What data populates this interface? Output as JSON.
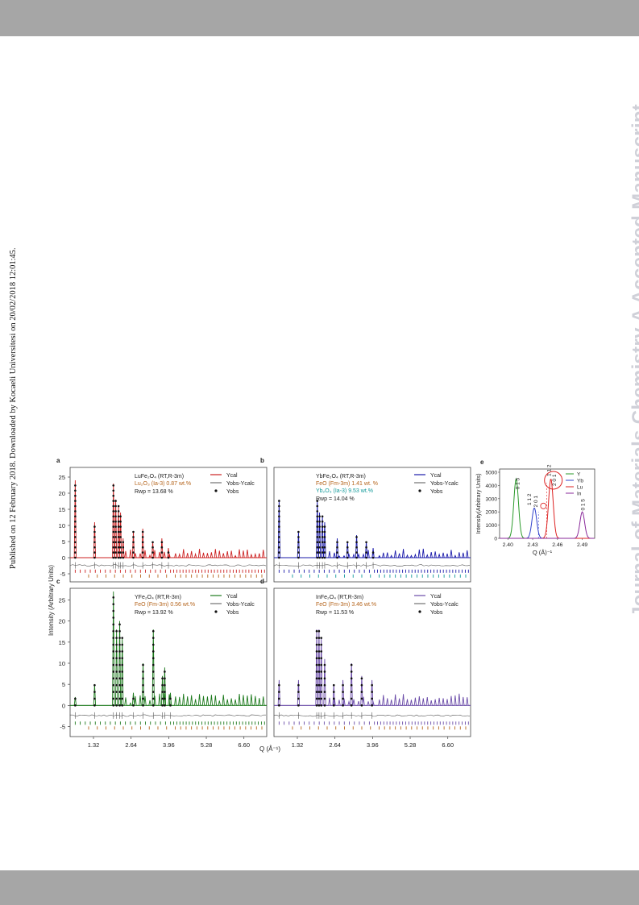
{
  "header_band": "",
  "footer_band": "",
  "published_note": "Published on 12 February 2018. Downloaded by Kocaeli Universitesi on 20/02/2018 12:01:45.",
  "journal_watermark": "Journal of Materials Chemistry A Accepted Manuscript",
  "figure": {
    "y_label": "Intensity (Arbitrary Units)",
    "x_label": "Q (Å⁻¹)",
    "x_ticks": [
      "1.32",
      "2.64",
      "3.96",
      "5.28",
      "6.60"
    ],
    "x_ticks_right": [
      "1.32",
      "2.64",
      "3.96",
      "5.28",
      "6.60"
    ],
    "y_ticks": [
      "25",
      "20",
      "15",
      "10",
      "5",
      "0",
      "-5"
    ],
    "panels": [
      {
        "letter": "a",
        "color": "#cc2222",
        "tick_color2": "#b5651d",
        "compound": "LuFe₂O₄ (RT,R-3m)",
        "phase1": "Lu₂O₃ (Ia-3) 0.87 wt.%",
        "phase2": "",
        "rwp": "Rwp = 13.68 %",
        "legend": [
          "Ycal",
          "Yobs-Ycalc",
          "Yobs"
        ]
      },
      {
        "letter": "b",
        "color": "#1a1aaa",
        "tick_color2": "#119999",
        "compound": "YbFe₂O₄ (RT,R-3m)",
        "phase1": "FeO (Fm-3m) 1.41 wt. %",
        "phase2": "Yb₂O₃ (Ia-3) 9.53 wt.%",
        "rwp": "Rwp = 14.04 %",
        "legend": [
          "Ycal",
          "Yobs-Ycalc",
          "Yobs"
        ]
      },
      {
        "letter": "c",
        "color": "#1d7a1d",
        "tick_color2": "#b5651d",
        "compound": "YFe₂O₄ (RT,R-3m)",
        "phase1": "FeO (Fm-3m) 0.56 wt.%",
        "phase2": "",
        "rwp": "Rwp = 13.92 %",
        "legend": [
          "Ycal",
          "Yobs-Ycalc",
          "Yobs"
        ]
      },
      {
        "letter": "d",
        "color": "#6a4ba8",
        "tick_color2": "#b5651d",
        "compound": "InFe₂O₄ (RT,R-3m)",
        "phase1": "FeO (Fm-3m) 3.46 wt.%",
        "phase2": "",
        "rwp": "Rwp = 11.53 %",
        "legend": [
          "Ycal",
          "Yobs-Ycalc",
          "Yobs"
        ]
      }
    ],
    "panel_e": {
      "letter": "e",
      "y_label": "Intensity(Arbitrary Units)",
      "x_label": "Q (Å)⁻¹",
      "y_ticks": [
        "5000",
        "4000",
        "3000",
        "2000",
        "1000",
        "0"
      ],
      "x_ticks": [
        "2.40",
        "2.43",
        "2.46",
        "2.49"
      ],
      "legend": [
        {
          "name": "Y",
          "color": "#2a9a2a"
        },
        {
          "name": "Yb",
          "color": "#3344cc"
        },
        {
          "name": "Lu",
          "color": "#dd2222"
        },
        {
          "name": "In",
          "color": "#8a2a9a"
        }
      ],
      "peak_labels": [
        "0 1 5",
        "1 1 2",
        "2 0 1",
        "1 1 2",
        "2 0 1",
        "0 1 5"
      ]
    }
  },
  "chart_data": [
    {
      "type": "line",
      "panel": "a",
      "series": [
        {
          "name": "Ycal",
          "peaks_q": [
            0.68,
            1.36,
            2.02,
            2.1,
            2.2,
            2.27,
            2.36,
            2.72,
            3.05,
            3.4,
            3.72,
            3.95
          ],
          "peaks_i": [
            24,
            11,
            23,
            18,
            16,
            14,
            6,
            8,
            9,
            5,
            6,
            3
          ]
        }
      ],
      "ylim": [
        -7,
        27
      ],
      "xlim": [
        0.5,
        7.4
      ]
    },
    {
      "type": "line",
      "panel": "b",
      "series": [
        {
          "name": "Ycal",
          "peaks_q": [
            0.68,
            1.36,
            2.02,
            2.1,
            2.2,
            2.28,
            2.72,
            3.08,
            3.4,
            3.74,
            3.98
          ],
          "peaks_i": [
            18,
            8,
            18,
            14,
            13,
            11,
            6,
            5,
            7,
            5,
            3
          ]
        }
      ],
      "ylim": [
        -7,
        27
      ],
      "xlim": [
        0.5,
        7.4
      ]
    },
    {
      "type": "line",
      "panel": "c",
      "series": [
        {
          "name": "Ycal",
          "peaks_q": [
            0.68,
            1.36,
            2.02,
            2.13,
            2.24,
            2.33,
            2.72,
            3.06,
            3.42,
            3.74,
            3.82,
            4.02
          ],
          "peaks_i": [
            2,
            5,
            27,
            18,
            20,
            16,
            3,
            10,
            18,
            7,
            9,
            3
          ]
        }
      ],
      "ylim": [
        -7,
        27
      ],
      "xlim": [
        0.5,
        7.4
      ]
    },
    {
      "type": "line",
      "panel": "d",
      "series": [
        {
          "name": "Ycal",
          "peaks_q": [
            0.68,
            1.36,
            2.0,
            2.08,
            2.16,
            2.28,
            2.6,
            2.92,
            3.22,
            3.58,
            3.94
          ],
          "peaks_i": [
            6,
            6,
            18,
            18,
            16,
            11,
            5,
            6,
            10,
            7,
            6
          ]
        }
      ],
      "ylim": [
        -7,
        27
      ],
      "xlim": [
        0.5,
        7.4
      ]
    },
    {
      "type": "line",
      "panel": "e",
      "x": [
        2.39,
        2.4,
        2.41,
        2.42,
        2.43,
        2.44,
        2.45,
        2.46,
        2.47,
        2.48,
        2.49,
        2.5
      ],
      "series": [
        {
          "name": "Y",
          "peak_x": 2.41,
          "peak_y": 4500,
          "width": 0.004
        },
        {
          "name": "Yb",
          "peak_x": 2.432,
          "peak_y": 2300,
          "width": 0.004
        },
        {
          "name": "Lu",
          "peak_x": 2.452,
          "peak_y": 4500,
          "width": 0.004
        },
        {
          "name": "In",
          "peak_x": 2.49,
          "peak_y": 2000,
          "width": 0.004
        }
      ],
      "ylim": [
        0,
        5000
      ],
      "xlim": [
        2.39,
        2.505
      ]
    }
  ]
}
